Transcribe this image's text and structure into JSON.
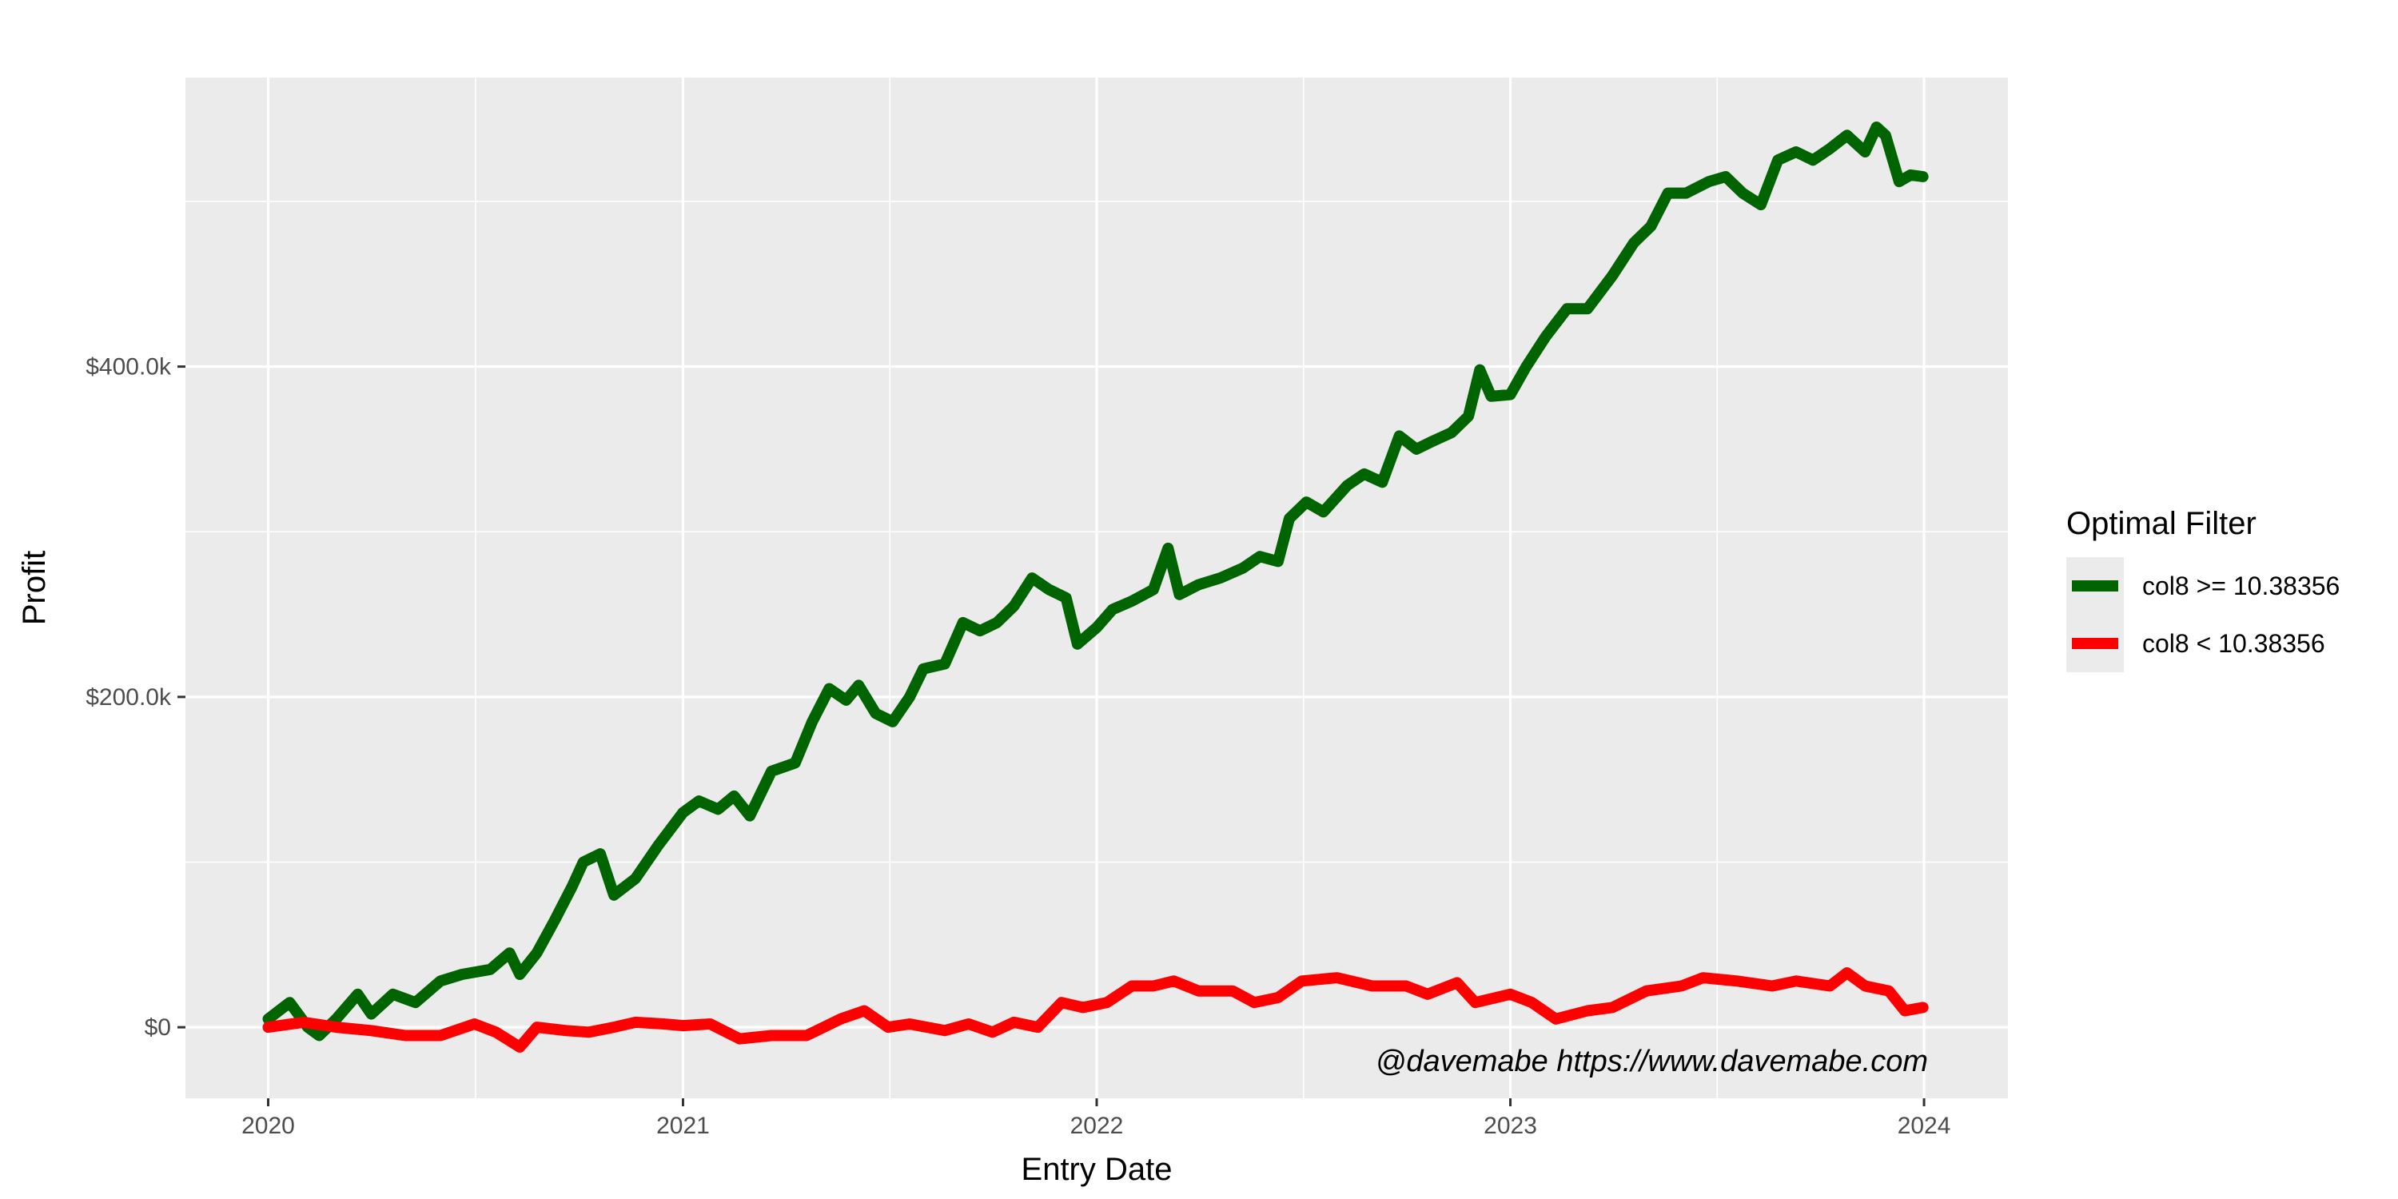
{
  "chart_data": {
    "type": "line",
    "xlabel": "Entry Date",
    "ylabel": "Profit",
    "x_ticks": [
      "2020",
      "2021",
      "2022",
      "2023",
      "2024"
    ],
    "y_ticks": [
      "$0",
      "$200.0k",
      "$400.0k"
    ],
    "xlim": [
      "2019-10-20",
      "2024-03-15"
    ],
    "ylim": [
      -43000,
      575000
    ],
    "grid": true,
    "legend_title": "Optimal Filter",
    "legend_position": "right",
    "annotation": "@davemabe https://www.davemabe.com",
    "series": [
      {
        "name": "col8 >= 10.38356",
        "color": "#006400",
        "points": [
          [
            "2020-01-01",
            5000
          ],
          [
            "2020-01-20",
            15000
          ],
          [
            "2020-02-05",
            0
          ],
          [
            "2020-02-15",
            -5000
          ],
          [
            "2020-03-01",
            5000
          ],
          [
            "2020-03-20",
            20000
          ],
          [
            "2020-04-01",
            8000
          ],
          [
            "2020-04-20",
            20000
          ],
          [
            "2020-05-10",
            15000
          ],
          [
            "2020-06-01",
            28000
          ],
          [
            "2020-06-20",
            32000
          ],
          [
            "2020-07-15",
            35000
          ],
          [
            "2020-08-01",
            45000
          ],
          [
            "2020-08-10",
            32000
          ],
          [
            "2020-08-25",
            45000
          ],
          [
            "2020-09-10",
            65000
          ],
          [
            "2020-09-25",
            85000
          ],
          [
            "2020-10-05",
            100000
          ],
          [
            "2020-10-20",
            105000
          ],
          [
            "2020-11-01",
            80000
          ],
          [
            "2020-11-20",
            90000
          ],
          [
            "2020-12-10",
            110000
          ],
          [
            "2021-01-01",
            130000
          ],
          [
            "2021-01-15",
            137000
          ],
          [
            "2021-02-01",
            132000
          ],
          [
            "2021-02-15",
            140000
          ],
          [
            "2021-03-01",
            128000
          ],
          [
            "2021-03-20",
            155000
          ],
          [
            "2021-04-10",
            160000
          ],
          [
            "2021-04-25",
            185000
          ],
          [
            "2021-05-10",
            205000
          ],
          [
            "2021-05-25",
            198000
          ],
          [
            "2021-06-05",
            207000
          ],
          [
            "2021-06-20",
            190000
          ],
          [
            "2021-07-05",
            185000
          ],
          [
            "2021-07-20",
            200000
          ],
          [
            "2021-08-01",
            217000
          ],
          [
            "2021-08-20",
            220000
          ],
          [
            "2021-09-05",
            245000
          ],
          [
            "2021-09-20",
            240000
          ],
          [
            "2021-10-05",
            245000
          ],
          [
            "2021-10-20",
            255000
          ],
          [
            "2021-11-05",
            272000
          ],
          [
            "2021-11-20",
            265000
          ],
          [
            "2021-12-05",
            260000
          ],
          [
            "2021-12-15",
            232000
          ],
          [
            "2022-01-01",
            242000
          ],
          [
            "2022-01-15",
            253000
          ],
          [
            "2022-02-01",
            258000
          ],
          [
            "2022-02-20",
            265000
          ],
          [
            "2022-03-05",
            290000
          ],
          [
            "2022-03-15",
            262000
          ],
          [
            "2022-04-01",
            268000
          ],
          [
            "2022-04-20",
            272000
          ],
          [
            "2022-05-10",
            278000
          ],
          [
            "2022-05-25",
            285000
          ],
          [
            "2022-06-10",
            282000
          ],
          [
            "2022-06-20",
            308000
          ],
          [
            "2022-07-05",
            318000
          ],
          [
            "2022-07-20",
            312000
          ],
          [
            "2022-08-10",
            328000
          ],
          [
            "2022-08-25",
            335000
          ],
          [
            "2022-09-10",
            330000
          ],
          [
            "2022-09-25",
            358000
          ],
          [
            "2022-10-10",
            350000
          ],
          [
            "2022-10-25",
            355000
          ],
          [
            "2022-11-10",
            360000
          ],
          [
            "2022-11-25",
            370000
          ],
          [
            "2022-12-05",
            398000
          ],
          [
            "2022-12-15",
            382000
          ],
          [
            "2023-01-01",
            383000
          ],
          [
            "2023-01-15",
            400000
          ],
          [
            "2023-02-01",
            418000
          ],
          [
            "2023-02-20",
            435000
          ],
          [
            "2023-03-10",
            435000
          ],
          [
            "2023-04-01",
            455000
          ],
          [
            "2023-04-20",
            475000
          ],
          [
            "2023-05-05",
            485000
          ],
          [
            "2023-05-20",
            505000
          ],
          [
            "2023-06-05",
            505000
          ],
          [
            "2023-06-25",
            512000
          ],
          [
            "2023-07-10",
            515000
          ],
          [
            "2023-07-25",
            505000
          ],
          [
            "2023-08-10",
            498000
          ],
          [
            "2023-08-25",
            525000
          ],
          [
            "2023-09-10",
            530000
          ],
          [
            "2023-09-25",
            525000
          ],
          [
            "2023-10-10",
            532000
          ],
          [
            "2023-10-25",
            540000
          ],
          [
            "2023-11-10",
            530000
          ],
          [
            "2023-11-20",
            545000
          ],
          [
            "2023-11-28",
            540000
          ],
          [
            "2023-12-10",
            512000
          ],
          [
            "2023-12-20",
            516000
          ],
          [
            "2023-12-31",
            515000
          ]
        ]
      },
      {
        "name": "col8 < 10.38356",
        "color": "#ff0000",
        "points": [
          [
            "2020-01-01",
            0
          ],
          [
            "2020-02-01",
            3000
          ],
          [
            "2020-03-01",
            0
          ],
          [
            "2020-04-01",
            -2000
          ],
          [
            "2020-05-01",
            -5000
          ],
          [
            "2020-06-01",
            -5000
          ],
          [
            "2020-07-01",
            2000
          ],
          [
            "2020-07-20",
            -3000
          ],
          [
            "2020-08-10",
            -12000
          ],
          [
            "2020-08-25",
            0
          ],
          [
            "2020-09-20",
            -2000
          ],
          [
            "2020-10-10",
            -3000
          ],
          [
            "2020-11-01",
            0
          ],
          [
            "2020-11-20",
            3000
          ],
          [
            "2020-12-15",
            2000
          ],
          [
            "2021-01-01",
            1000
          ],
          [
            "2021-01-25",
            2000
          ],
          [
            "2021-02-20",
            -7000
          ],
          [
            "2021-03-20",
            -5000
          ],
          [
            "2021-04-20",
            -5000
          ],
          [
            "2021-05-20",
            5000
          ],
          [
            "2021-06-10",
            10000
          ],
          [
            "2021-07-01",
            0
          ],
          [
            "2021-07-20",
            2000
          ],
          [
            "2021-08-20",
            -2000
          ],
          [
            "2021-09-10",
            2000
          ],
          [
            "2021-10-01",
            -3000
          ],
          [
            "2021-10-20",
            3000
          ],
          [
            "2021-11-10",
            0
          ],
          [
            "2021-12-01",
            15000
          ],
          [
            "2021-12-20",
            12000
          ],
          [
            "2022-01-10",
            15000
          ],
          [
            "2022-02-01",
            25000
          ],
          [
            "2022-02-20",
            25000
          ],
          [
            "2022-03-10",
            28000
          ],
          [
            "2022-04-01",
            22000
          ],
          [
            "2022-05-01",
            22000
          ],
          [
            "2022-05-20",
            15000
          ],
          [
            "2022-06-10",
            18000
          ],
          [
            "2022-07-01",
            28000
          ],
          [
            "2022-08-01",
            30000
          ],
          [
            "2022-09-01",
            25000
          ],
          [
            "2022-10-01",
            25000
          ],
          [
            "2022-10-20",
            20000
          ],
          [
            "2022-11-15",
            27000
          ],
          [
            "2022-12-01",
            15000
          ],
          [
            "2023-01-01",
            20000
          ],
          [
            "2023-01-20",
            15000
          ],
          [
            "2023-02-10",
            5000
          ],
          [
            "2023-03-10",
            10000
          ],
          [
            "2023-04-01",
            12000
          ],
          [
            "2023-05-01",
            22000
          ],
          [
            "2023-06-01",
            25000
          ],
          [
            "2023-06-20",
            30000
          ],
          [
            "2023-07-20",
            28000
          ],
          [
            "2023-08-20",
            25000
          ],
          [
            "2023-09-10",
            28000
          ],
          [
            "2023-10-10",
            25000
          ],
          [
            "2023-10-25",
            33000
          ],
          [
            "2023-11-10",
            25000
          ],
          [
            "2023-12-01",
            22000
          ],
          [
            "2023-12-15",
            10000
          ],
          [
            "2023-12-31",
            12000
          ]
        ]
      }
    ]
  }
}
